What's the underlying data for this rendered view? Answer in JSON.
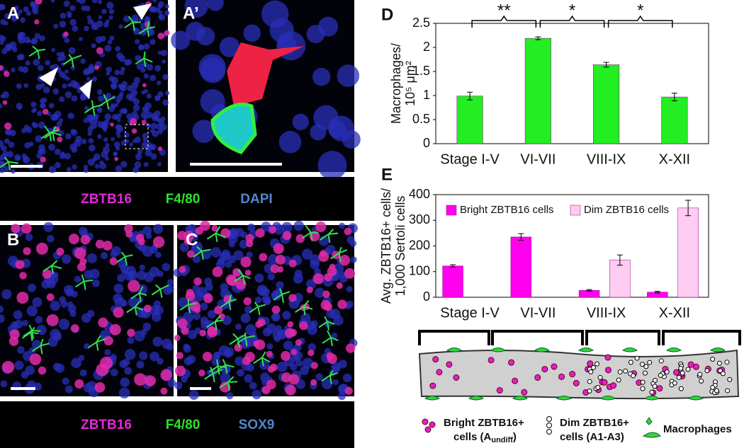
{
  "panel_labels": [
    "A",
    "A’",
    "B",
    "C",
    "D",
    "E"
  ],
  "stain_legends": [
    [
      "ZBTB16",
      "F4/80",
      "DAPI"
    ],
    [
      "ZBTB16",
      "F4/80",
      "SOX9"
    ]
  ],
  "chart_data": [
    {
      "type": "bar",
      "ylabel": [
        "Macrophages/",
        "10⁵ μm²"
      ],
      "categories": [
        "Stage I-V",
        "VI-VII",
        "VIII-IX",
        "X-XII"
      ],
      "values": [
        0.99,
        2.19,
        1.64,
        0.97
      ],
      "errors": [
        0.08,
        0.03,
        0.05,
        0.08
      ],
      "color": "#22ee22",
      "significance": [
        "**",
        "*",
        "*"
      ],
      "ylim": [
        0,
        2.5
      ],
      "yticks": [
        0,
        0.5,
        1,
        1.5,
        2,
        2.5
      ],
      "grid": false
    },
    {
      "type": "bar",
      "ylabel": [
        "Avg. ZBTB16+ cells/",
        "1,000 Sertoli cells"
      ],
      "categories": [
        "Stage I-V",
        "VI-VII",
        "VIII-IX",
        "X-XII"
      ],
      "series": [
        {
          "name": "Bright ZBTB16 cells",
          "color": "#ff00ee",
          "values": [
            122,
            235,
            27,
            20
          ],
          "errors": [
            5,
            13,
            3,
            3
          ]
        },
        {
          "name": "Dim ZBTB16 cells",
          "color": "#ffccf2",
          "values": [
            null,
            null,
            145,
            348
          ],
          "errors": [
            null,
            null,
            20,
            30
          ]
        }
      ],
      "legend": "upper left",
      "ylim": [
        0,
        400
      ],
      "yticks": [
        0,
        100,
        200,
        300,
        400
      ],
      "grid": false
    }
  ],
  "diagram_legend": {
    "bright": [
      "Bright ZBTB16+",
      "cells (A",
      "undiff",
      ")"
    ],
    "dim": [
      "Dim ZBTB16+",
      "cells (A1-A3)"
    ],
    "macrophages": "Macrophages"
  }
}
